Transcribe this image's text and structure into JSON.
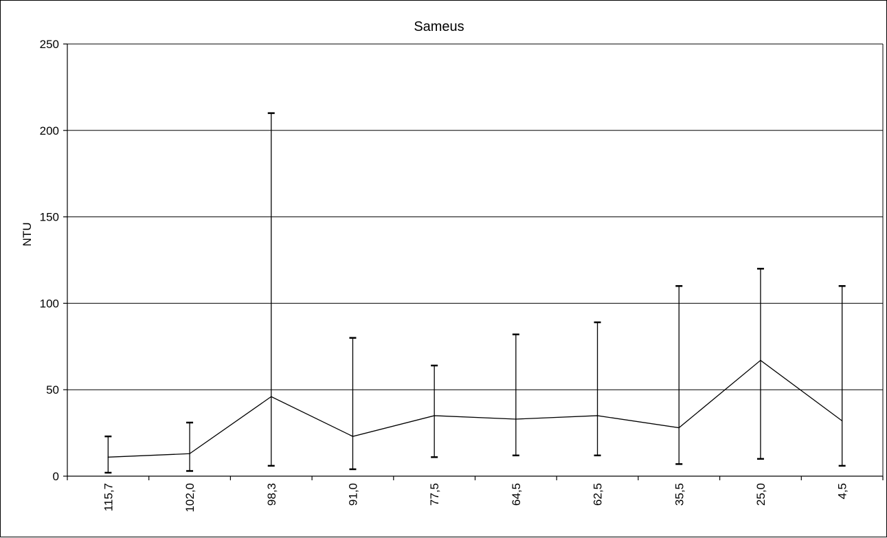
{
  "chart_data": {
    "type": "line",
    "title": "Sameus",
    "xlabel": "",
    "ylabel": "NTU",
    "ylim": [
      0,
      250
    ],
    "yticks": [
      0,
      50,
      100,
      150,
      200,
      250
    ],
    "grid": true,
    "categories": [
      "115,7",
      "102,0",
      "98,3",
      "91,0",
      "77,5",
      "64,5",
      "62,5",
      "35,5",
      "25,0",
      "4,5"
    ],
    "series": [
      {
        "values": [
          11,
          13,
          46,
          23,
          35,
          33,
          35,
          28,
          67,
          32
        ],
        "err_low": [
          2,
          3,
          6,
          4,
          11,
          12,
          12,
          7,
          10,
          6
        ],
        "err_high": [
          23,
          31,
          210,
          80,
          64,
          82,
          89,
          110,
          120,
          110
        ]
      }
    ],
    "colors": {
      "line": "#000000",
      "grid": "#000000"
    }
  }
}
